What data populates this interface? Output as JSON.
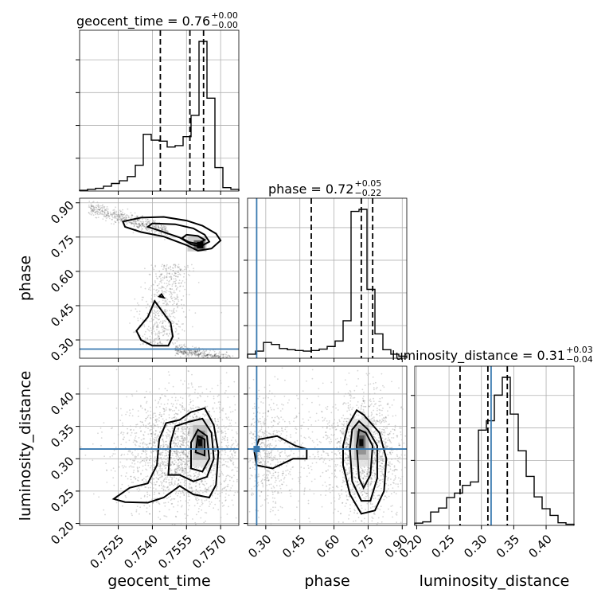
{
  "chart_data": {
    "type": "corner",
    "parameters": [
      "geocent_time",
      "phase",
      "luminosity_distance"
    ],
    "titles": [
      {
        "param": "geocent_time",
        "text": "geocent_time = 0.76",
        "plus": "+0.00",
        "minus": "−0.00"
      },
      {
        "param": "phase",
        "text": "phase = 0.72",
        "plus": "+0.05",
        "minus": "−0.22"
      },
      {
        "param": "luminosity_distance",
        "text": "luminosity_distance = 0.31",
        "plus": "+0.03",
        "minus": "−0.04"
      }
    ],
    "ranges": {
      "geocent_time": [
        0.7508,
        0.7578
      ],
      "phase": [
        0.22,
        0.92
      ],
      "luminosity_distance": [
        0.197,
        0.443
      ]
    },
    "ticks": {
      "geocent_time": [
        "0.7525",
        "0.7540",
        "0.7555",
        "0.7570"
      ],
      "phase": [
        "0.30",
        "0.45",
        "0.60",
        "0.75",
        "0.90"
      ],
      "luminosity_distance_y": [
        "0.20",
        "0.25",
        "0.30",
        "0.35",
        "0.40"
      ],
      "luminosity_distance_x": [
        "0.20",
        "0.25",
        "0.30",
        "0.35",
        "0.40"
      ]
    },
    "quantiles": {
      "geocent_time": [
        0.75435,
        0.75565,
        0.75625
      ],
      "phase": [
        0.5,
        0.72,
        0.77
      ],
      "luminosity_distance": [
        0.267,
        0.31,
        0.34
      ]
    },
    "truths": {
      "geocent_time": null,
      "phase": 0.26,
      "luminosity_distance": 0.315
    },
    "histograms": {
      "geocent_time": {
        "edges_start": 0.7508,
        "bin_width": 0.00035,
        "counts": [
          0.2,
          0.5,
          0.8,
          1.4,
          2.2,
          3.0,
          4.2,
          7.5,
          16.5,
          14.8,
          14.5,
          12.8,
          13.2,
          15.8,
          22.0,
          43.5,
          27.0,
          6.8,
          1.0,
          0.5
        ]
      },
      "phase": {
        "edges_start": 0.22,
        "bin_width": 0.035,
        "counts": [
          2.0,
          3.5,
          7.8,
          6.8,
          4.8,
          4.2,
          3.8,
          3.5,
          3.8,
          4.5,
          5.8,
          8.5,
          18.5,
          72.5,
          73.5,
          34.0,
          12.0,
          4.2,
          2.0,
          1.0
        ]
      },
      "luminosity_distance": {
        "edges_start": 0.197,
        "bin_width": 0.0123,
        "counts": [
          1.0,
          1.6,
          6.0,
          7.8,
          12.5,
          14.5,
          18.0,
          19.5,
          42.8,
          47.0,
          58.5,
          66.5,
          50.0,
          33.5,
          22.0,
          12.8,
          7.5,
          4.5,
          1.2,
          0.5
        ]
      }
    },
    "contours": {
      "geocent_time_vs_phase": [
        [
          [
            0.7535,
            0.835
          ],
          [
            0.7545,
            0.838
          ],
          [
            0.7555,
            0.822
          ],
          [
            0.7562,
            0.8
          ],
          [
            0.7568,
            0.765
          ],
          [
            0.757,
            0.735
          ],
          [
            0.7566,
            0.7
          ],
          [
            0.756,
            0.69
          ],
          [
            0.7555,
            0.715
          ],
          [
            0.7545,
            0.752
          ],
          [
            0.7535,
            0.772
          ],
          [
            0.7528,
            0.795
          ],
          [
            0.7527,
            0.818
          ],
          [
            0.7535,
            0.835
          ]
        ],
        [
          [
            0.754,
            0.81
          ],
          [
            0.755,
            0.806
          ],
          [
            0.7558,
            0.788
          ],
          [
            0.7563,
            0.76
          ],
          [
            0.7565,
            0.73
          ],
          [
            0.7561,
            0.708
          ],
          [
            0.7557,
            0.718
          ],
          [
            0.7552,
            0.748
          ],
          [
            0.7544,
            0.775
          ],
          [
            0.7538,
            0.795
          ],
          [
            0.754,
            0.81
          ]
        ],
        [
          [
            0.7555,
            0.76
          ],
          [
            0.756,
            0.755
          ],
          [
            0.7563,
            0.738
          ],
          [
            0.756,
            0.72
          ],
          [
            0.7556,
            0.728
          ],
          [
            0.7553,
            0.745
          ],
          [
            0.7555,
            0.76
          ]
        ],
        [
          [
            0.7541,
            0.47
          ],
          [
            0.7548,
            0.375
          ],
          [
            0.7549,
            0.315
          ],
          [
            0.7547,
            0.275
          ],
          [
            0.754,
            0.275
          ],
          [
            0.7535,
            0.3
          ],
          [
            0.7533,
            0.34
          ],
          [
            0.7538,
            0.4
          ],
          [
            0.7541,
            0.47
          ]
        ],
        [
          [
            0.7544,
            0.5
          ],
          [
            0.7545,
            0.485
          ],
          [
            0.7543,
            0.49
          ],
          [
            0.7544,
            0.5
          ]
        ]
      ],
      "geocent_time_vs_luminosity_distance": [
        [
          [
            0.7523,
            0.238
          ],
          [
            0.753,
            0.255
          ],
          [
            0.7538,
            0.262
          ],
          [
            0.7542,
            0.29
          ],
          [
            0.7543,
            0.33
          ],
          [
            0.7546,
            0.355
          ],
          [
            0.7552,
            0.36
          ],
          [
            0.7557,
            0.372
          ],
          [
            0.7563,
            0.378
          ],
          [
            0.7567,
            0.352
          ],
          [
            0.7569,
            0.31
          ],
          [
            0.7568,
            0.26
          ],
          [
            0.7565,
            0.24
          ],
          [
            0.7558,
            0.245
          ],
          [
            0.7552,
            0.258
          ],
          [
            0.7545,
            0.24
          ],
          [
            0.7538,
            0.232
          ],
          [
            0.7528,
            0.233
          ],
          [
            0.7523,
            0.238
          ]
        ],
        [
          [
            0.7547,
            0.275
          ],
          [
            0.7548,
            0.325
          ],
          [
            0.755,
            0.35
          ],
          [
            0.7556,
            0.357
          ],
          [
            0.7562,
            0.362
          ],
          [
            0.7566,
            0.34
          ],
          [
            0.7567,
            0.3
          ],
          [
            0.7564,
            0.272
          ],
          [
            0.7558,
            0.265
          ],
          [
            0.7552,
            0.275
          ],
          [
            0.7547,
            0.275
          ]
        ],
        [
          [
            0.7557,
            0.285
          ],
          [
            0.7557,
            0.325
          ],
          [
            0.756,
            0.345
          ],
          [
            0.7564,
            0.335
          ],
          [
            0.7565,
            0.3
          ],
          [
            0.7562,
            0.28
          ],
          [
            0.7557,
            0.285
          ]
        ],
        [
          [
            0.7559,
            0.31
          ],
          [
            0.756,
            0.335
          ],
          [
            0.7563,
            0.33
          ],
          [
            0.7563,
            0.305
          ],
          [
            0.7559,
            0.31
          ]
        ]
      ],
      "phase_vs_luminosity_distance": [
        [
          [
            0.25,
            0.31
          ],
          [
            0.27,
            0.33
          ],
          [
            0.35,
            0.335
          ],
          [
            0.43,
            0.32
          ],
          [
            0.48,
            0.315
          ],
          [
            0.48,
            0.3
          ],
          [
            0.42,
            0.3
          ],
          [
            0.33,
            0.285
          ],
          [
            0.26,
            0.29
          ],
          [
            0.25,
            0.31
          ]
        ],
        [
          [
            0.64,
            0.32
          ],
          [
            0.66,
            0.35
          ],
          [
            0.7,
            0.375
          ],
          [
            0.73,
            0.368
          ],
          [
            0.8,
            0.34
          ],
          [
            0.83,
            0.3
          ],
          [
            0.82,
            0.25
          ],
          [
            0.78,
            0.22
          ],
          [
            0.72,
            0.215
          ],
          [
            0.67,
            0.245
          ],
          [
            0.64,
            0.29
          ],
          [
            0.64,
            0.32
          ]
        ],
        [
          [
            0.67,
            0.315
          ],
          [
            0.68,
            0.345
          ],
          [
            0.71,
            0.358
          ],
          [
            0.75,
            0.345
          ],
          [
            0.79,
            0.32
          ],
          [
            0.79,
            0.27
          ],
          [
            0.76,
            0.235
          ],
          [
            0.72,
            0.235
          ],
          [
            0.68,
            0.265
          ],
          [
            0.67,
            0.315
          ]
        ],
        [
          [
            0.7,
            0.32
          ],
          [
            0.71,
            0.345
          ],
          [
            0.74,
            0.34
          ],
          [
            0.77,
            0.32
          ],
          [
            0.76,
            0.275
          ],
          [
            0.73,
            0.255
          ],
          [
            0.71,
            0.27
          ],
          [
            0.7,
            0.32
          ]
        ]
      ]
    },
    "density_peaks": {
      "geocent_time_vs_phase": [
        0.7561,
        0.715
      ],
      "geocent_time_vs_luminosity_distance": [
        0.7561,
        0.325
      ],
      "phase_vs_luminosity_distance": [
        0.72,
        0.325
      ]
    }
  }
}
